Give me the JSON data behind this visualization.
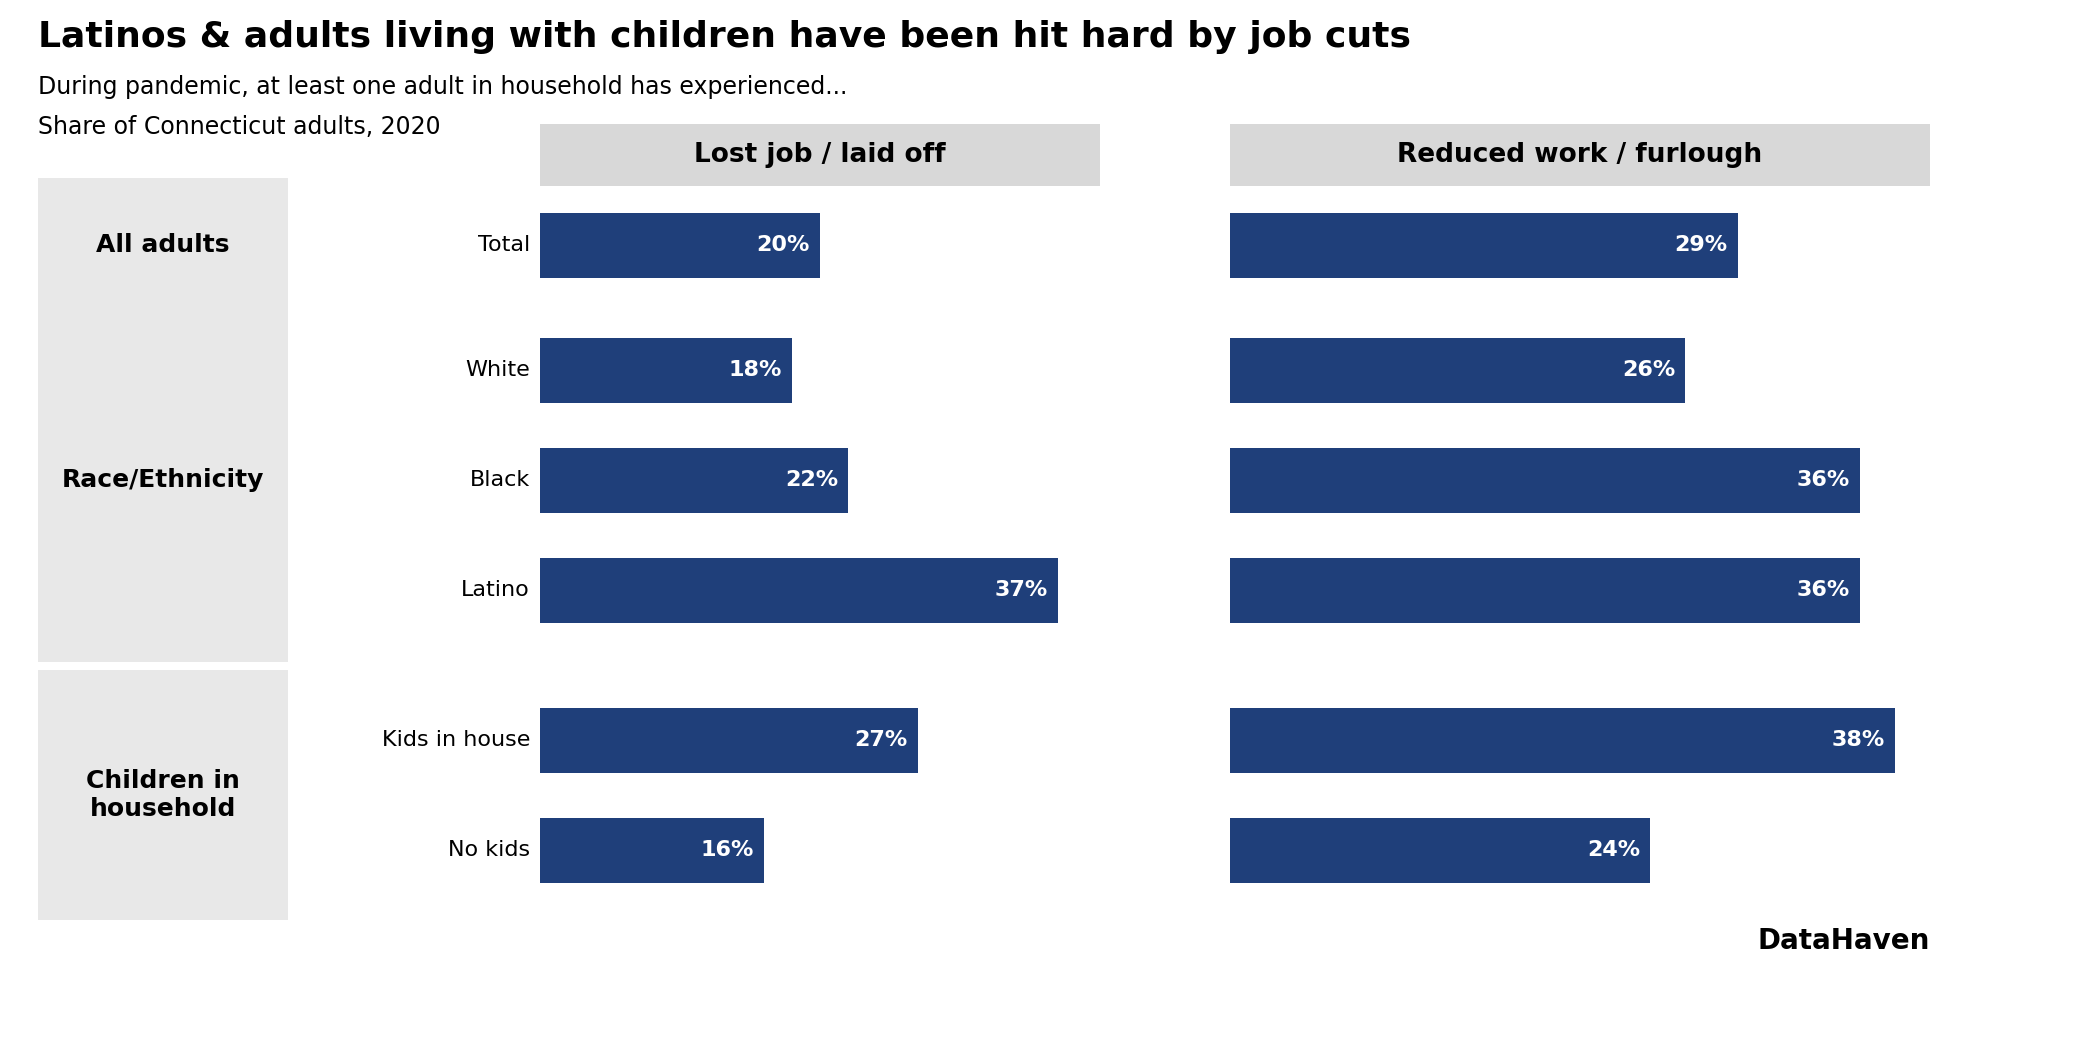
{
  "title": "Latinos & adults living with children have been hit hard by job cuts",
  "subtitle1": "During pandemic, at least one adult in household has experienced...",
  "subtitle2": "Share of Connecticut adults, 2020",
  "col1_header": "Lost job / laid off",
  "col2_header": "Reduced work / furlough",
  "categories": [
    "Total",
    "White",
    "Black",
    "Latino",
    "Kids in house",
    "No kids"
  ],
  "group_labels": [
    "All adults",
    "Race/Ethnicity",
    "Children in\nhousehold"
  ],
  "lost_job": [
    20,
    18,
    22,
    37,
    27,
    16
  ],
  "reduced_work": [
    29,
    26,
    36,
    36,
    38,
    24
  ],
  "bar_color": "#1F3F7A",
  "max_val": 40,
  "label_color": "#ffffff",
  "background_color": "#ffffff",
  "group_bg_color": "#e8e8e8",
  "header_bg_color": "#d8d8d8",
  "footer_text": "DataHaven",
  "title_fontsize": 26,
  "subtitle_fontsize": 17,
  "category_fontsize": 16,
  "group_fontsize": 18,
  "header_fontsize": 19,
  "bar_label_fontsize": 16,
  "footer_fontsize": 20
}
